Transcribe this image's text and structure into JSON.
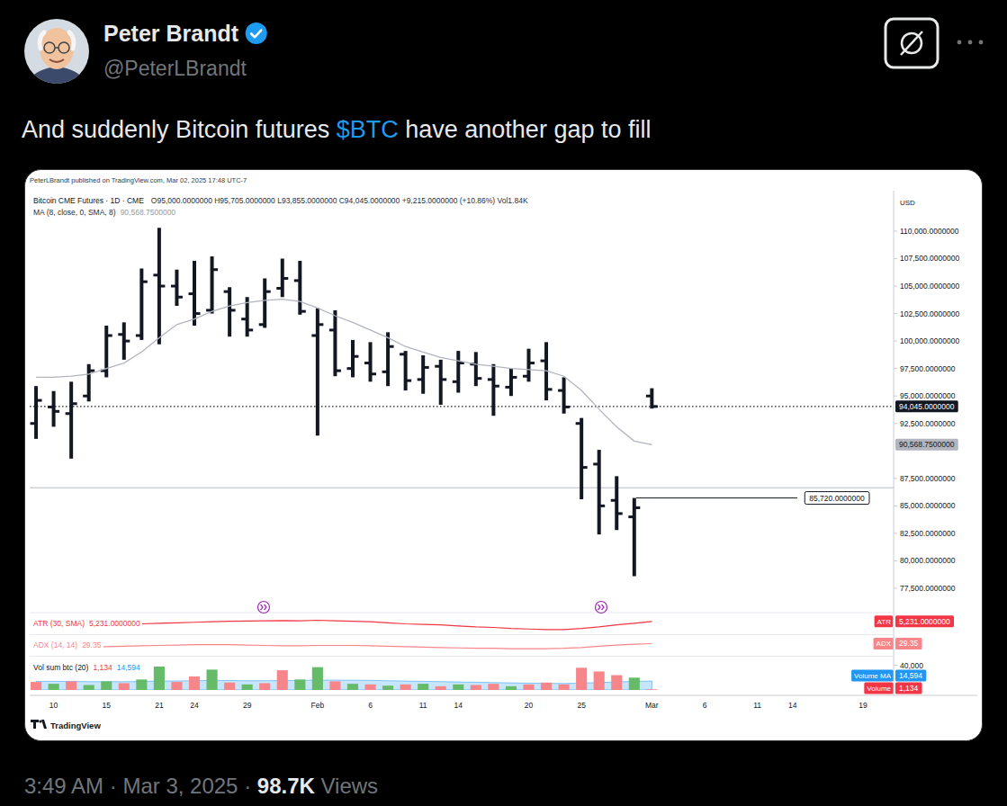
{
  "tweet": {
    "name": "Peter Brandt",
    "handle": "@PeterLBrandt",
    "text": "And suddenly Bitcoin futures $BTC have another gap to fill",
    "cashtag": "$BTC",
    "time": "3:49 AM",
    "separator": "·",
    "date": "Mar 3, 2025",
    "views": "98.7K",
    "views_label": "Views"
  },
  "chart_data": [
    {
      "type": "ohlc",
      "attribution": "PeterLBrandt published on TradingView.com, Mar 02, 2025 17:48 UTC-7",
      "readout": "O95,000.0000000 H95,705.0000000 L93,855.0000000 C94,045.0000000 +9,215.0000000 (+10.86%) Vol1.84K",
      "unit": "USD",
      "logo_text": "TradingView",
      "grid": false,
      "categories": [
        null,
        "10",
        null,
        null,
        "15",
        null,
        null,
        "21",
        null,
        "24",
        null,
        null,
        "29",
        null,
        null,
        null,
        "Feb",
        null,
        null,
        "6",
        null,
        null,
        "11",
        null,
        "14",
        null,
        null,
        null,
        "20",
        null,
        null,
        "25",
        null,
        null,
        null,
        "Mar",
        null,
        null,
        "6",
        null,
        null,
        "11",
        null,
        "14",
        null,
        null,
        null,
        "19",
        null
      ],
      "ylim": [
        75370,
        113680
      ],
      "yticks": [
        {
          "value": 77500,
          "label": "77,500.0000000"
        },
        {
          "value": 80000,
          "label": "80,000.0000000"
        },
        {
          "value": 82500,
          "label": "82,500.0000000"
        },
        {
          "value": 85000,
          "label": "85,000.0000000"
        },
        {
          "value": 87500,
          "label": "87,500.0000000"
        },
        {
          "value": 92500,
          "label": "92,500.0000000"
        },
        {
          "value": 95000,
          "label": "95,000.0000000"
        },
        {
          "value": 97500,
          "label": "97,500.0000000"
        },
        {
          "value": 100000,
          "label": "100,000.0000000"
        },
        {
          "value": 102500,
          "label": "102,500.0000000"
        },
        {
          "value": 105000,
          "label": "105,000.0000000"
        },
        {
          "value": 107500,
          "label": "107,500.0000000"
        },
        {
          "value": 110000,
          "label": "110,000.0000000"
        }
      ],
      "price_line": {
        "value": 94045,
        "label": "94,045.0000000"
      },
      "annotations": [
        {
          "value": 85720,
          "label": "85,720.0000000"
        },
        {
          "value": 86650
        }
      ],
      "series": [
        {
          "name": "Bitcoin CME Futures · 1D · CME",
          "type": "ohlc",
          "color": "#131722",
          "open": [
            92500,
            94000,
            93400,
            95000,
            97300,
            100600,
            100500,
            106000,
            105000,
            104300,
            102800,
            104500,
            102000,
            101500,
            104800,
            105500,
            100500,
            101000,
            97500,
            98000,
            97200,
            98800,
            96500,
            97700,
            96300,
            97900,
            96500,
            95800,
            96800,
            98200,
            95500,
            92500,
            88800,
            85500,
            84000,
            95000,
            null,
            null,
            null,
            null,
            null,
            null,
            null,
            null,
            null,
            null,
            null,
            null,
            null
          ],
          "high": [
            95900,
            95450,
            96300,
            97900,
            101400,
            101700,
            106600,
            110300,
            106500,
            107300,
            107700,
            104900,
            104000,
            105700,
            107500,
            107300,
            103000,
            102800,
            100100,
            99900,
            100800,
            99100,
            98700,
            98300,
            99100,
            99000,
            97900,
            97500,
            99300,
            99900,
            96700,
            93000,
            90100,
            87700,
            85720,
            95705,
            null,
            null,
            null,
            null,
            null,
            null,
            null,
            null,
            null,
            null,
            null,
            null,
            null
          ],
          "low": [
            91100,
            92200,
            89300,
            94500,
            96700,
            98300,
            100100,
            99700,
            103200,
            101400,
            102500,
            100400,
            100400,
            101200,
            104000,
            102400,
            91400,
            96800,
            96700,
            96300,
            95900,
            95500,
            95200,
            94200,
            95300,
            95900,
            93200,
            95000,
            96300,
            94600,
            93400,
            85600,
            82400,
            82800,
            78600,
            93855,
            null,
            null,
            null,
            null,
            null,
            null,
            null,
            null,
            null,
            null,
            null,
            null,
            null
          ],
          "close": [
            94600,
            93600,
            94300,
            97300,
            100500,
            100000,
            105400,
            105000,
            104000,
            102500,
            106500,
            102800,
            101000,
            104500,
            105700,
            102700,
            101500,
            97300,
            98600,
            97000,
            99500,
            96400,
            97600,
            96500,
            98000,
            96600,
            95900,
            96700,
            98000,
            95600,
            94000,
            88500,
            85000,
            84300,
            84830,
            94045,
            null,
            null,
            null,
            null,
            null,
            null,
            null,
            null,
            null,
            null,
            null,
            null,
            null
          ]
        },
        {
          "name": "MA (8, close, 0, SMA, 8)",
          "type": "line",
          "color": "#b2b5be",
          "end_label": "90,568.7500000",
          "values": [
            96700,
            96700,
            96800,
            97000,
            97500,
            98000,
            99000,
            100300,
            101500,
            102000,
            102700,
            103200,
            103500,
            103700,
            103800,
            103600,
            103000,
            102300,
            101700,
            101000,
            100300,
            99500,
            99000,
            98500,
            98200,
            97900,
            97700,
            97500,
            97400,
            97300,
            96800,
            95500,
            93800,
            92200,
            90900,
            90568.75,
            null,
            null,
            null,
            null,
            null,
            null,
            null,
            null,
            null,
            null,
            null,
            null,
            null
          ]
        }
      ]
    },
    {
      "type": "line",
      "title": "ATR (30, SMA)",
      "ylim": [
        4000,
        6000
      ],
      "tick_labels": false,
      "series": [
        {
          "name": "ATR",
          "color": "#f23645",
          "end_label": "5,231.0000000",
          "values": [
            4900,
            4880,
            4900,
            4920,
            4950,
            4980,
            5000,
            5050,
            5100,
            5150,
            5200,
            5250,
            5280,
            5300,
            5320,
            5300,
            5350,
            5300,
            5250,
            5200,
            5100,
            5000,
            4950,
            4900,
            4800,
            4700,
            4650,
            4550,
            4500,
            4450,
            4450,
            4550,
            4700,
            4900,
            5050,
            5231,
            null,
            null,
            null,
            null,
            null,
            null,
            null,
            null,
            null,
            null,
            null,
            null,
            null
          ]
        }
      ]
    },
    {
      "type": "line",
      "title": "ADX (14, 14)",
      "ylim": [
        0,
        50
      ],
      "tick_labels": false,
      "series": [
        {
          "name": "ADX",
          "color": "#f7868b",
          "end_label": "29.35",
          "values": [
            20,
            20,
            21,
            21,
            22,
            23,
            24,
            25,
            26,
            27,
            27,
            27,
            26,
            25,
            24,
            24,
            25,
            25,
            25,
            24,
            23,
            22,
            21,
            20,
            19,
            18,
            18,
            17,
            17,
            17,
            18,
            20,
            23,
            26,
            28,
            29.35,
            null,
            null,
            null,
            null,
            null,
            null,
            null,
            null,
            null,
            null,
            null,
            null,
            null
          ]
        }
      ]
    },
    {
      "type": "bar",
      "title": "Vol sum btc (20)",
      "ylim": [
        0,
        54000
      ],
      "yticks": [
        {
          "value": 40000,
          "label": "40,000"
        }
      ],
      "tick_labels": "y",
      "series": [
        {
          "name": "Volume",
          "type": "bar",
          "color": "#f23645",
          "end_label": "1,134",
          "values": [
            13000,
            10000,
            14000,
            8000,
            14000,
            11000,
            17000,
            38000,
            13000,
            22000,
            33000,
            12000,
            9000,
            11000,
            32000,
            17000,
            37000,
            14000,
            10000,
            9000,
            7000,
            9000,
            10000,
            6000,
            9000,
            8000,
            10000,
            6000,
            9000,
            12000,
            9000,
            36000,
            30000,
            24000,
            20000,
            1134,
            null,
            null,
            null,
            null,
            null,
            null,
            null,
            null,
            null,
            null,
            null,
            null,
            null
          ],
          "colors": [
            "#f7868b",
            "#66bb6a",
            "#f7868b",
            "#66bb6a",
            "#66bb6a",
            "#f7868b",
            "#66bb6a",
            "#66bb6a",
            "#f7868b",
            "#f7868b",
            "#66bb6a",
            "#f7868b",
            "#66bb6a",
            "#f7868b",
            "#f7868b",
            "#66bb6a",
            "#66bb6a",
            "#f7868b",
            "#66bb6a",
            "#f7868b",
            "#66bb6a",
            "#f7868b",
            "#66bb6a",
            "#f7868b",
            "#66bb6a",
            "#f7868b",
            "#f7868b",
            "#66bb6a",
            "#f7868b",
            "#f7868b",
            "#f7868b",
            "#f7868b",
            "#f7868b",
            "#f7868b",
            "#66bb6a",
            "#f7868b",
            null,
            null,
            null,
            null,
            null,
            null,
            null,
            null,
            null,
            null,
            null,
            null,
            null
          ]
        },
        {
          "name": "Volume MA",
          "type": "area",
          "color": "#2196f3",
          "end_label": "14,594",
          "values": [
            14000,
            14000,
            13800,
            13500,
            13500,
            13400,
            13800,
            14500,
            14600,
            15000,
            15500,
            15400,
            15000,
            15000,
            15300,
            15500,
            16000,
            16000,
            15800,
            15600,
            15000,
            14500,
            14000,
            13500,
            13000,
            12500,
            12000,
            11500,
            11000,
            10800,
            10500,
            11300,
            12000,
            13000,
            13800,
            14594,
            null,
            null,
            null,
            null,
            null,
            null,
            null,
            null,
            null,
            null,
            null,
            null,
            null
          ]
        }
      ]
    }
  ]
}
